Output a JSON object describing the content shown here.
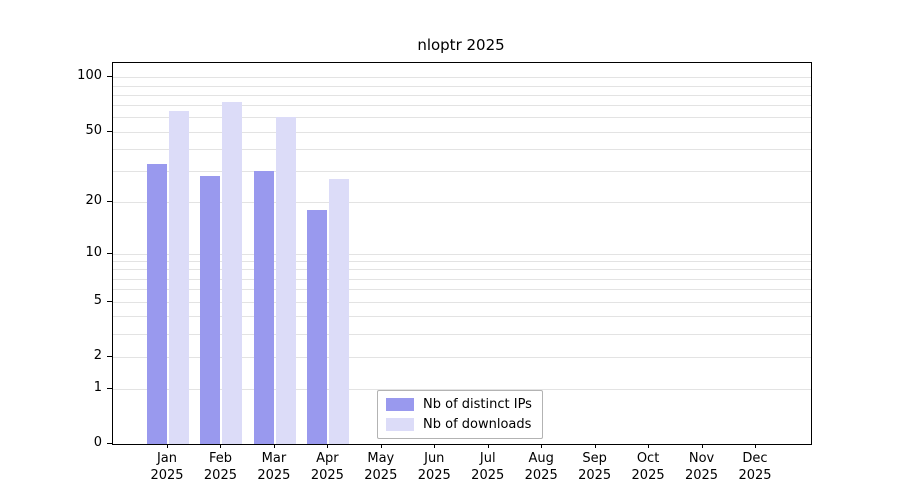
{
  "chart_data": {
    "type": "bar",
    "title": "nloptr 2025",
    "categories": [
      "Jan",
      "Feb",
      "Mar",
      "Apr",
      "May",
      "Jun",
      "Jul",
      "Aug",
      "Sep",
      "Oct",
      "Nov",
      "Dec"
    ],
    "x_year": "2025",
    "series": [
      {
        "name": "Nb of distinct IPs",
        "color": "#9999ee",
        "values": [
          33,
          28,
          30,
          18,
          0,
          0,
          0,
          0,
          0,
          0,
          0,
          0
        ]
      },
      {
        "name": "Nb of downloads",
        "color": "#dcdcf8",
        "values": [
          65,
          73,
          60,
          27,
          0,
          0,
          0,
          0,
          0,
          0,
          0,
          0
        ]
      }
    ],
    "y_ticks": [
      0,
      1,
      2,
      5,
      10,
      20,
      50,
      100
    ],
    "y_tick_labels": [
      "0",
      "1",
      "2",
      "5",
      "10",
      "20",
      "50",
      "100"
    ],
    "y_scale": "log1p",
    "y_max": 120,
    "grid": true,
    "grid_minor_values": [
      1,
      2,
      3,
      4,
      5,
      6,
      7,
      8,
      9,
      10,
      20,
      30,
      40,
      50,
      60,
      70,
      80,
      90,
      100
    ],
    "legend_position": "inside-bottom-center",
    "background_color": "#ffffff",
    "grid_color": "#e3e3e3"
  }
}
